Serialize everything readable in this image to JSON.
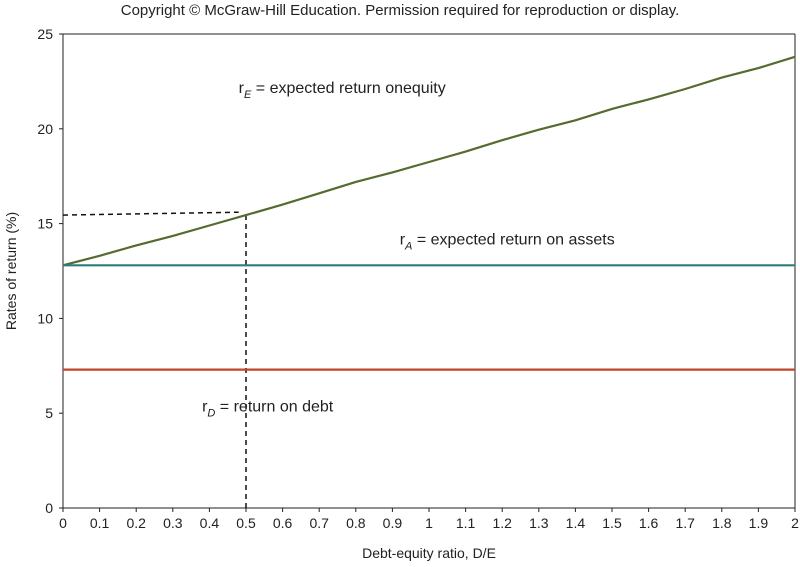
{
  "copyright": "Copyright © McGraw-Hill Education. Permission required for reproduction or display.",
  "chart_data": {
    "type": "line",
    "title": "",
    "xlabel": "Debt-equity ratio, D/E",
    "ylabel": "Rates of return (%)",
    "xlim": [
      0,
      2
    ],
    "ylim": [
      0,
      25
    ],
    "x_ticks": [
      "0",
      "0.1",
      "0.2",
      "0.3",
      "0.4",
      "0.5",
      "0.6",
      "0.7",
      "0.8",
      "0.9",
      "1",
      "1.1",
      "1.2",
      "1.3",
      "1.4",
      "1.5",
      "1.6",
      "1.7",
      "1.8",
      "1.9",
      "2"
    ],
    "y_ticks": [
      "0",
      "5",
      "10",
      "15",
      "20",
      "25"
    ],
    "grid": false,
    "series": [
      {
        "key": "rE",
        "color": "#556b2f",
        "x": [
          0,
          0.1,
          0.2,
          0.3,
          0.4,
          0.5,
          0.6,
          0.7,
          0.8,
          0.9,
          1.0,
          1.1,
          1.2,
          1.3,
          1.4,
          1.5,
          1.6,
          1.7,
          1.8,
          1.9,
          2.0
        ],
        "y": [
          12.8,
          13.3,
          13.85,
          14.35,
          14.9,
          15.45,
          16.0,
          16.6,
          17.2,
          17.7,
          18.25,
          18.8,
          19.4,
          19.95,
          20.45,
          21.05,
          21.55,
          22.1,
          22.7,
          23.2,
          23.8
        ]
      },
      {
        "key": "rA",
        "color": "#2e7d7a",
        "x": [
          0,
          2
        ],
        "y": [
          12.8,
          12.8
        ]
      },
      {
        "key": "rD",
        "color": "#c0442a",
        "x": [
          0,
          2
        ],
        "y": [
          7.3,
          7.3
        ]
      }
    ],
    "reference_lines": [
      {
        "x": [
          0,
          0.48
        ],
        "y": [
          15.45,
          15.6
        ]
      },
      {
        "x": [
          0.5,
          0.5
        ],
        "y": [
          0,
          15.45
        ]
      }
    ],
    "annotations": [
      {
        "key": "rE",
        "main": "r",
        "sub": "E",
        "rest": " = expected return onequity",
        "at": [
          0.48,
          21.9
        ]
      },
      {
        "key": "rA",
        "main": "r",
        "sub": "A",
        "rest": " = expected return on assets",
        "at": [
          0.92,
          13.9
        ]
      },
      {
        "key": "rD",
        "main": "r",
        "sub": "D",
        "rest": " = return on debt",
        "at": [
          0.38,
          5.1
        ]
      }
    ]
  }
}
